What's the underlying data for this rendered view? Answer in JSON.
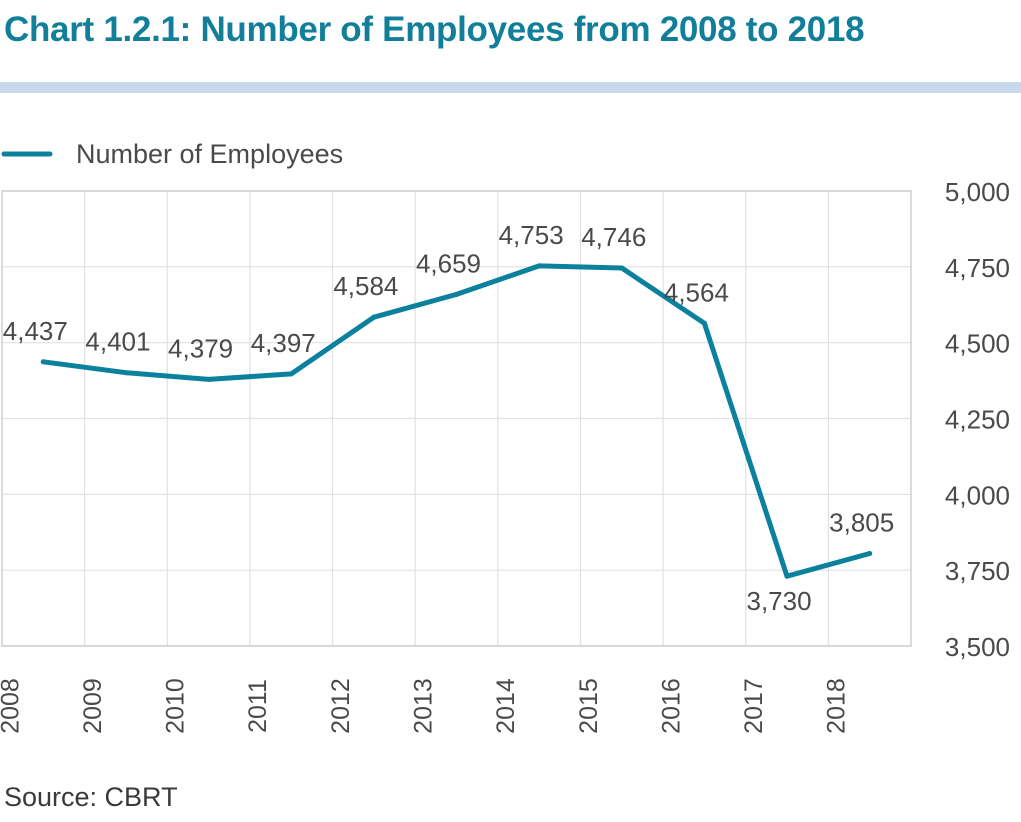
{
  "title": "Chart 1.2.1: Number of Employees from 2008 to 2018",
  "source": "Source: CBRT",
  "colors": {
    "title": "#127f9a",
    "line": "#0b819e",
    "rule": "#c7d9ea",
    "grid": "#dddddd"
  },
  "chart_data": {
    "type": "line",
    "title": "Chart 1.2.1: Number of Employees from 2008 to 2018",
    "xlabel": "",
    "ylabel": "",
    "x": [
      "2008",
      "2009",
      "2010",
      "2011",
      "2012",
      "2013",
      "2014",
      "2015",
      "2016",
      "2017",
      "2018"
    ],
    "series": [
      {
        "name": "Number of Employees",
        "values": [
          4437,
          4401,
          4379,
          4397,
          4584,
          4659,
          4753,
          4746,
          4564,
          3730,
          3805
        ],
        "labels": [
          "4,437",
          "4,401",
          "4,379",
          "4,397",
          "4,584",
          "4,659",
          "4,753",
          "4,746",
          "4,564",
          "3,730",
          "3,805"
        ]
      }
    ],
    "ylim": [
      3500,
      5000
    ],
    "yticks": [
      3500,
      3750,
      4000,
      4250,
      4500,
      4750,
      5000
    ],
    "ytick_labels": [
      "3,500",
      "3,750",
      "4,000",
      "4,250",
      "4,500",
      "4,750",
      "5,000"
    ],
    "y_axis_position": "right",
    "grid": true,
    "legend": "top-left"
  }
}
